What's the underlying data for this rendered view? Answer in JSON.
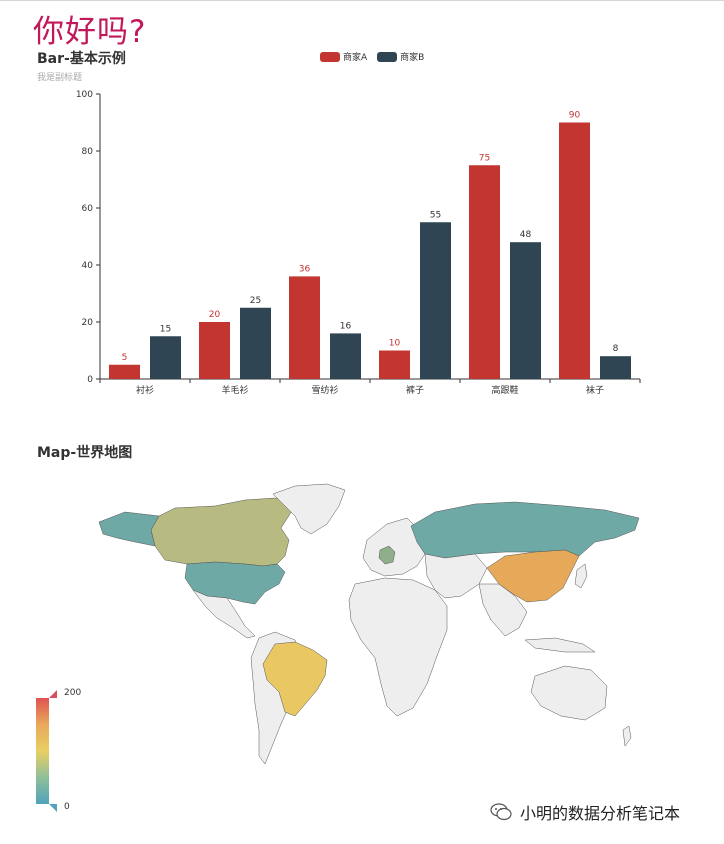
{
  "page": {
    "heading": "你好吗?"
  },
  "bar_section": {
    "title": "Bar-基本示例",
    "subtitle": "我是副标题"
  },
  "map_section": {
    "title": "Map-世界地图",
    "visual_map": {
      "min": "0",
      "max": "200"
    }
  },
  "watermark": {
    "text": "小明的数据分析笔记本",
    "icon": "wechat-icon"
  },
  "colors": {
    "series_a": "#c23531",
    "series_b": "#2f4554",
    "heading": "#c2185b"
  },
  "chart_data": [
    {
      "type": "bar",
      "title": "Bar-基本示例",
      "subtitle": "我是副标题",
      "categories": [
        "衬衫",
        "羊毛衫",
        "雪纺衫",
        "裤子",
        "高跟鞋",
        "袜子"
      ],
      "series": [
        {
          "name": "商家A",
          "values": [
            5,
            20,
            36,
            10,
            75,
            90
          ],
          "color": "#c23531"
        },
        {
          "name": "商家B",
          "values": [
            15,
            25,
            16,
            55,
            48,
            8
          ],
          "color": "#2f4554"
        }
      ],
      "ylim": [
        0,
        100
      ],
      "yticks": [
        0,
        20,
        40,
        60,
        80,
        100
      ],
      "legend": "top-center",
      "grid": false
    },
    {
      "type": "map",
      "title": "Map-世界地图",
      "regions": [
        {
          "name": "China",
          "level": "high-mid",
          "color": "#e6a95a"
        },
        {
          "name": "Brazil",
          "level": "mid",
          "color": "#e9c763"
        },
        {
          "name": "Canada",
          "level": "mid-low",
          "color": "#b8bb81"
        },
        {
          "name": "United States",
          "level": "low",
          "color": "#6fa9a6"
        },
        {
          "name": "Russia",
          "level": "low",
          "color": "#6fa9a6"
        },
        {
          "name": "Germany",
          "level": "low-mid",
          "color": "#8fae8a"
        }
      ],
      "visual_map": {
        "min": 0,
        "max": 200
      }
    }
  ]
}
